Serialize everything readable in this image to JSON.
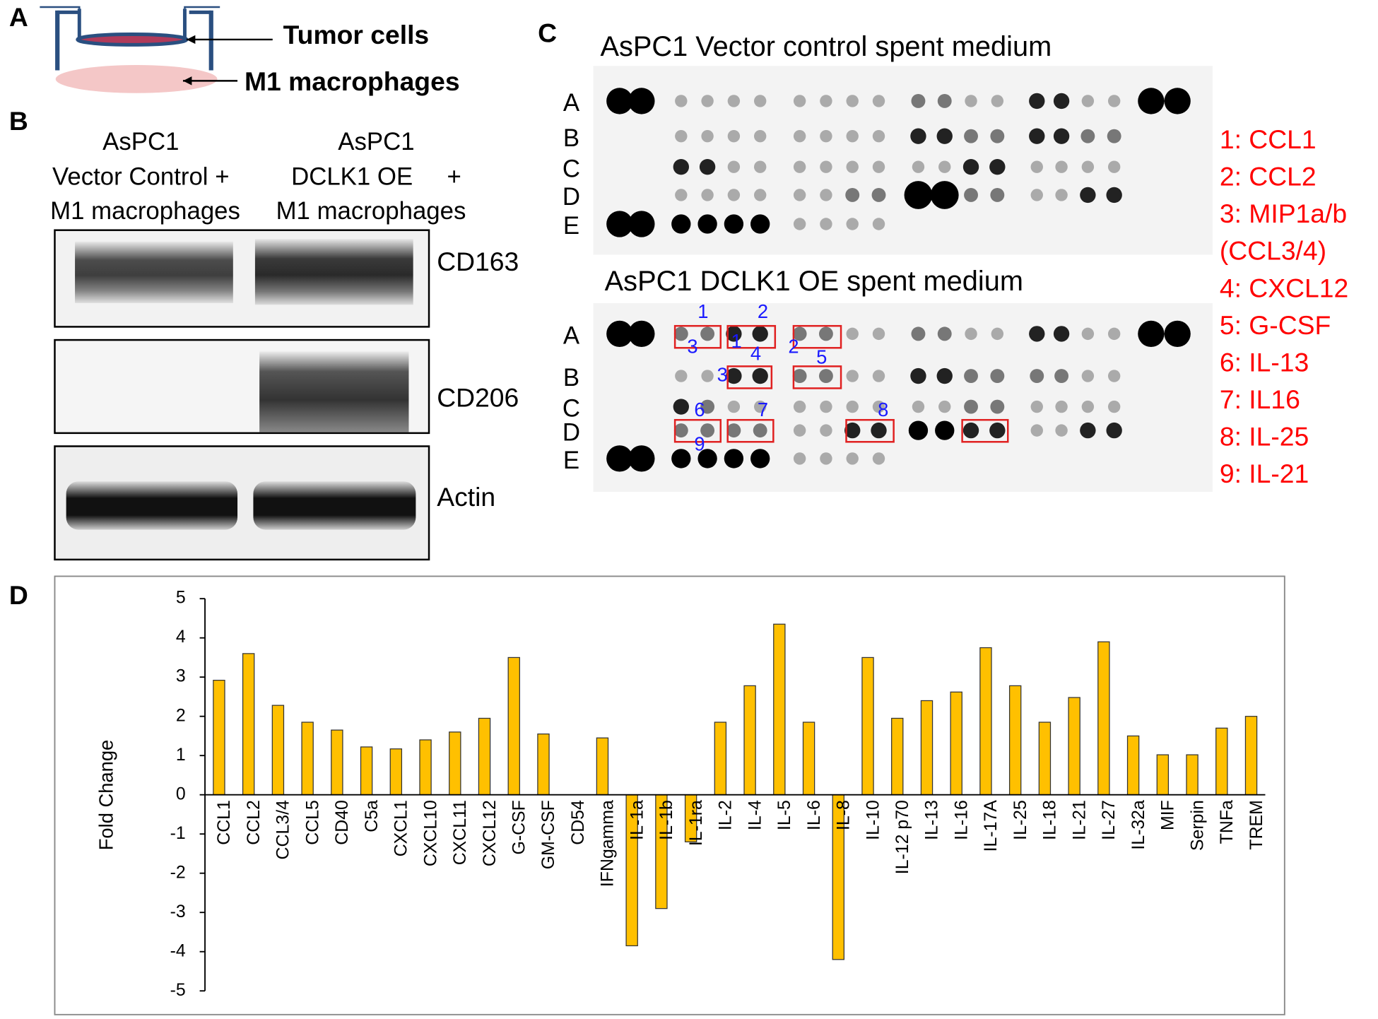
{
  "panel_labels": [
    "A",
    "B",
    "C",
    "D"
  ],
  "panel_a": {
    "tumor": "Tumor cells",
    "macrophages": "M1 macrophages"
  },
  "panel_b": {
    "left_header": [
      "AsPC1",
      "Vector Control +",
      "M1 macrophages"
    ],
    "right_header": [
      "AsPC1",
      "DCLK1 OE     +",
      "M1 macrophages"
    ],
    "blots": [
      "CD163",
      "CD206",
      "Actin"
    ]
  },
  "panel_c": {
    "top_title": "AsPC1 Vector control spent medium",
    "bottom_title": "AsPC1 DCLK1 OE spent medium",
    "rows": [
      "A",
      "B",
      "C",
      "D",
      "E"
    ],
    "box_numbers": [
      "1",
      "2",
      "3",
      "1",
      "2",
      "4",
      "3",
      "5",
      "6",
      "7",
      "9",
      "8"
    ],
    "legend": [
      "1: CCL1",
      "2: CCL2",
      "3: MIP1a/b",
      "(CCL3/4)",
      "4: CXCL12",
      "5: G-CSF",
      "6: IL-13",
      "7: IL16",
      "8: IL-25",
      "9: IL-21"
    ]
  },
  "chart_data": {
    "type": "bar",
    "y_label": "Fold Change",
    "color": "#ffc000",
    "categories": [
      "CCL1",
      "CCL2",
      "CCL3/4",
      "CCL5",
      "CD40",
      "C5a",
      "CXCL1",
      "CXCL10",
      "CXCL11",
      "CXCL12",
      "G-CSF",
      "GM-CSF",
      "CD54",
      "IFNgamma",
      "IL-1a",
      "IL-1b",
      "IL-1ra",
      "IL-2",
      "IL-4",
      "IL-5",
      "IL-6",
      "IL-8",
      "IL-10",
      "IL-12 p70",
      "IL-13",
      "IL-16",
      "IL-17A",
      "IL-25",
      "IL-18",
      "IL-21",
      "IL-27",
      "IL-32a",
      "MIF",
      "Serpin",
      "TNFa",
      "TREM"
    ],
    "values": [
      2.92,
      3.6,
      2.28,
      1.85,
      1.65,
      1.22,
      1.17,
      1.4,
      1.6,
      1.95,
      3.5,
      1.55,
      0,
      1.45,
      -3.85,
      -2.9,
      -1.2,
      1.85,
      2.78,
      4.35,
      1.85,
      -4.2,
      3.5,
      1.95,
      2.4,
      2.62,
      3.75,
      2.78,
      1.85,
      2.48,
      3.9,
      1.5,
      1.02,
      1.02,
      1.7,
      2.0
    ],
    "ylim": [
      -5,
      5
    ],
    "yticks": [
      -5,
      -4,
      -3,
      -2,
      -1,
      0,
      1,
      2,
      3,
      4,
      5
    ]
  }
}
